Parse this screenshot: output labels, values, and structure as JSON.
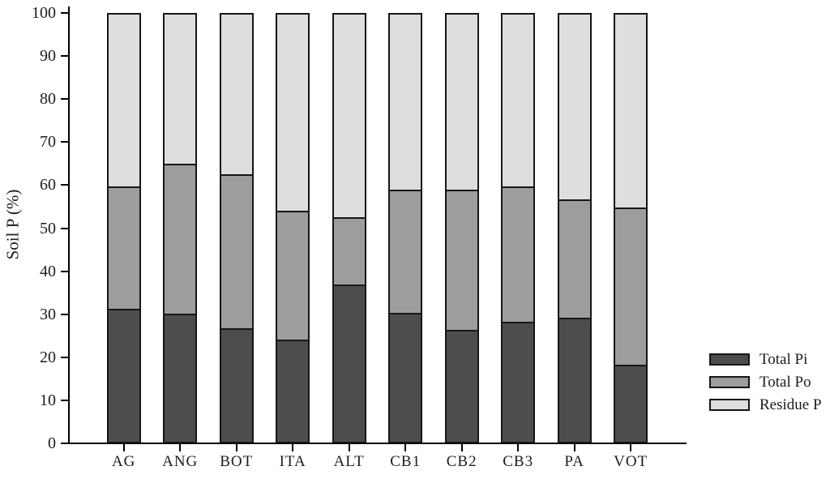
{
  "figure": {
    "background": "#ffffff",
    "text_color": "#1c1c1c",
    "axis_color": "#000000",
    "bar_border_color": "#161616"
  },
  "chart_data": {
    "type": "bar",
    "stacked": true,
    "title": "",
    "xlabel": "",
    "ylabel": "Soil P (%)",
    "ylim": [
      0,
      100
    ],
    "yticks": [
      0,
      10,
      20,
      30,
      40,
      50,
      60,
      70,
      80,
      90,
      100
    ],
    "grid": false,
    "legend_position": "right",
    "categories": [
      "AG",
      "ANG",
      "BOT",
      "ITA",
      "ALT",
      "CB1",
      "CB2",
      "CB3",
      "PA",
      "VOT"
    ],
    "series": [
      {
        "name": "Total Pi",
        "color": "#4d4d4d",
        "values": [
          31.1,
          29.9,
          26.6,
          24.0,
          36.8,
          30.2,
          26.2,
          28.0,
          29.1,
          18.1
        ]
      },
      {
        "name": "Total Po",
        "color": "#9d9d9d",
        "values": [
          28.7,
          35.2,
          36.1,
          30.0,
          15.7,
          28.9,
          32.9,
          31.8,
          27.7,
          36.8
        ]
      },
      {
        "name": "Residue P",
        "color": "#dedede",
        "values": [
          40.2,
          34.9,
          37.3,
          46.0,
          47.5,
          40.9,
          40.9,
          40.2,
          43.2,
          45.1
        ]
      }
    ]
  }
}
